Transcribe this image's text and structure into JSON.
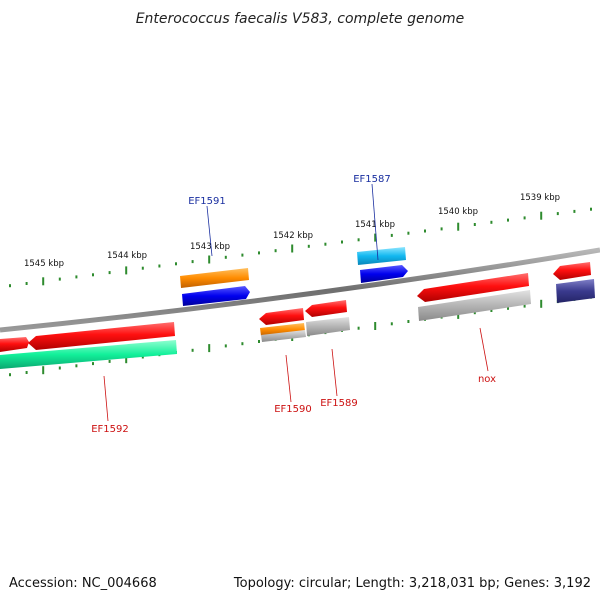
{
  "title": "Enterococcus faecalis V583, complete genome",
  "footer": {
    "accession": "Accession: NC_004668",
    "summary": "Topology: circular; Length: 3,218,031 bp; Genes: 3,192"
  },
  "colors": {
    "backbone": "#7a7a7a",
    "tick": "#2e8b2e",
    "label_red": "#cc1111",
    "label_blue": "#1a2fa0"
  },
  "scale_labels": [
    "1545 kbp",
    "1544 kbp",
    "1543 kbp",
    "1542 kbp",
    "1541 kbp",
    "1540 kbp",
    "1539 kbp"
  ],
  "genes": [
    {
      "name": "EF1592",
      "label": "EF1592",
      "label_color": "red"
    },
    {
      "name": "EF1591",
      "label": "EF1591",
      "label_color": "blue"
    },
    {
      "name": "EF1590",
      "label": "EF1590",
      "label_color": "red"
    },
    {
      "name": "EF1589",
      "label": "EF1589",
      "label_color": "red"
    },
    {
      "name": "EF1587",
      "label": "EF1587",
      "label_color": "blue"
    },
    {
      "name": "nox",
      "label": "nox",
      "label_color": "red"
    }
  ]
}
